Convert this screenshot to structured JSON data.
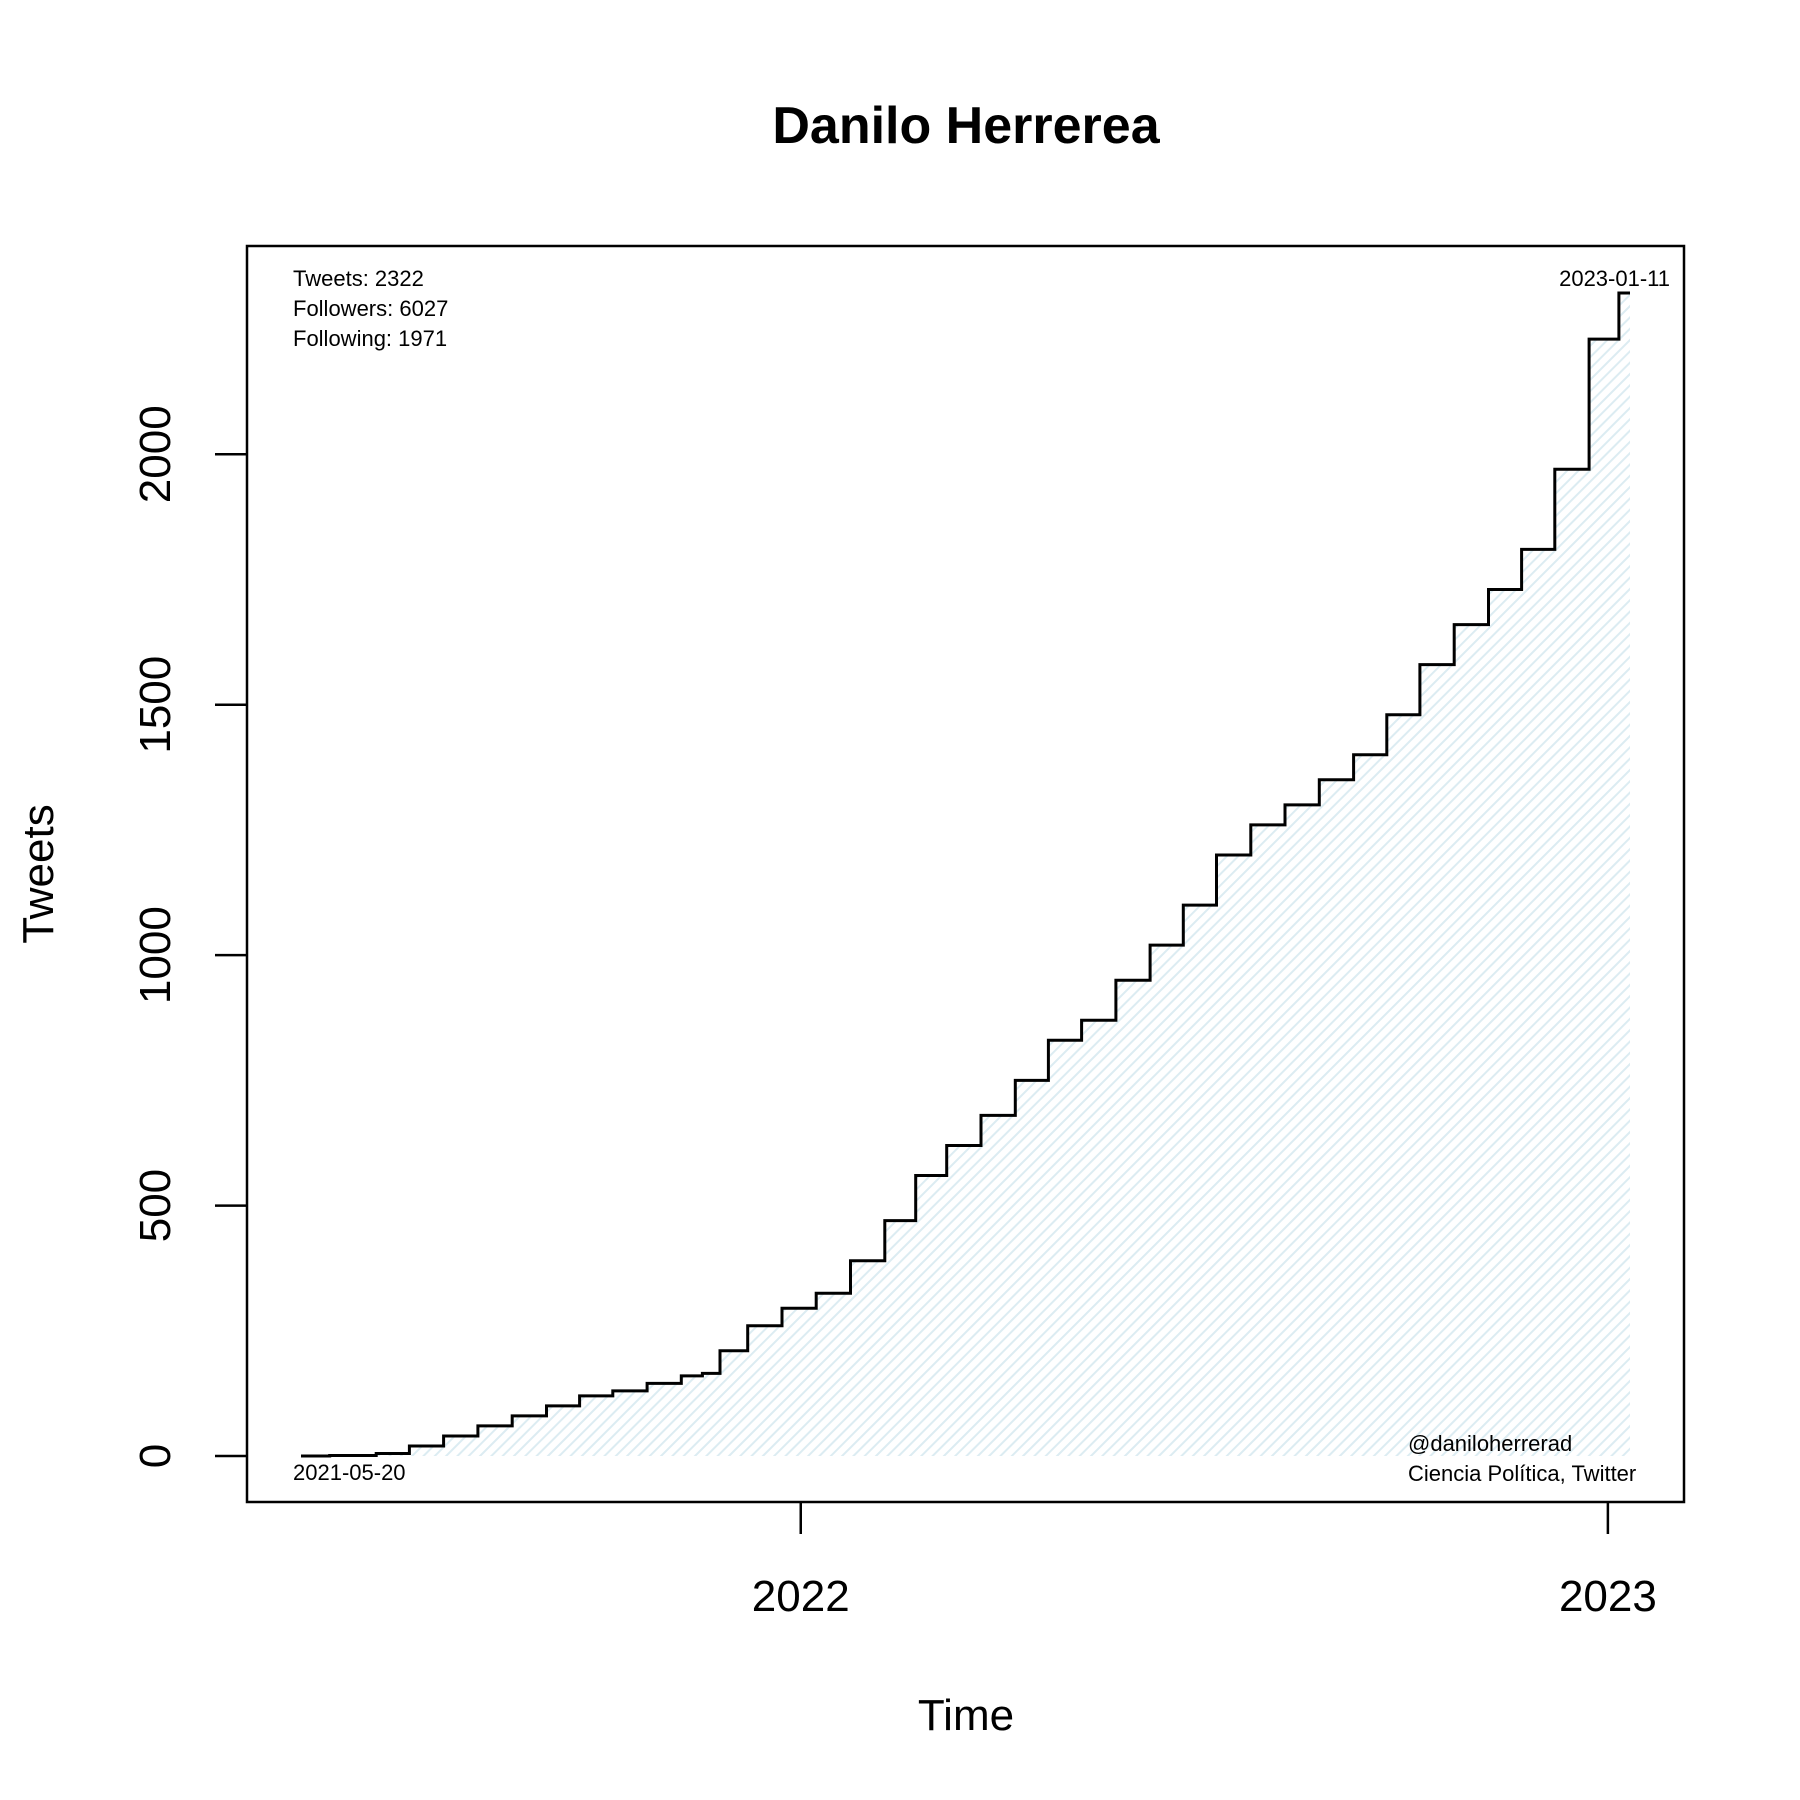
{
  "chart_data": {
    "type": "area",
    "title": "Danilo Herrerea",
    "xlabel": "Time",
    "ylabel": "Tweets",
    "ylim": [
      0,
      2322
    ],
    "xlim": [
      "2021-05-20",
      "2023-01-11"
    ],
    "grid": false,
    "legend": "none",
    "x_ticks": [
      {
        "date": "2022-01-01",
        "label": "2022"
      },
      {
        "date": "2023-01-01",
        "label": "2023"
      }
    ],
    "y_ticks": [
      0,
      500,
      1000,
      1500,
      2000
    ],
    "series": [
      {
        "x": [
          "2021-05-20",
          "2021-06-15",
          "2021-07-01",
          "2021-07-15",
          "2021-08-01",
          "2021-08-15",
          "2021-09-01",
          "2021-09-15",
          "2021-10-01",
          "2021-10-15",
          "2021-11-01",
          "2021-11-15",
          "2021-11-20",
          "2021-12-01",
          "2021-12-15",
          "2022-01-01",
          "2022-01-15",
          "2022-02-01",
          "2022-02-15",
          "2022-03-01",
          "2022-03-15",
          "2022-04-01",
          "2022-04-15",
          "2022-05-01",
          "2022-05-15",
          "2022-06-01",
          "2022-06-15",
          "2022-07-01",
          "2022-07-15",
          "2022-08-01",
          "2022-08-15",
          "2022-09-01",
          "2022-09-15",
          "2022-10-01",
          "2022-10-15",
          "2022-11-01",
          "2022-11-15",
          "2022-12-01",
          "2022-12-15",
          "2023-01-01",
          "2023-01-11"
        ],
        "values": [
          0,
          1,
          5,
          20,
          40,
          60,
          80,
          100,
          120,
          130,
          145,
          160,
          165,
          210,
          260,
          295,
          325,
          390,
          470,
          560,
          620,
          680,
          750,
          830,
          870,
          950,
          1020,
          1100,
          1200,
          1260,
          1300,
          1350,
          1400,
          1480,
          1580,
          1660,
          1730,
          1810,
          1970,
          2230,
          2322
        ]
      }
    ],
    "fill_color": "#e8f4f8",
    "line_color": "#000000"
  },
  "annotations": {
    "tweets": "Tweets: 2322",
    "followers": "Followers: 6027",
    "following": "Following: 1971",
    "start_date": "2021-05-20",
    "end_date": "2023-01-11",
    "handle": "@daniloherrerad",
    "source": "Ciencia Política, Twitter"
  }
}
